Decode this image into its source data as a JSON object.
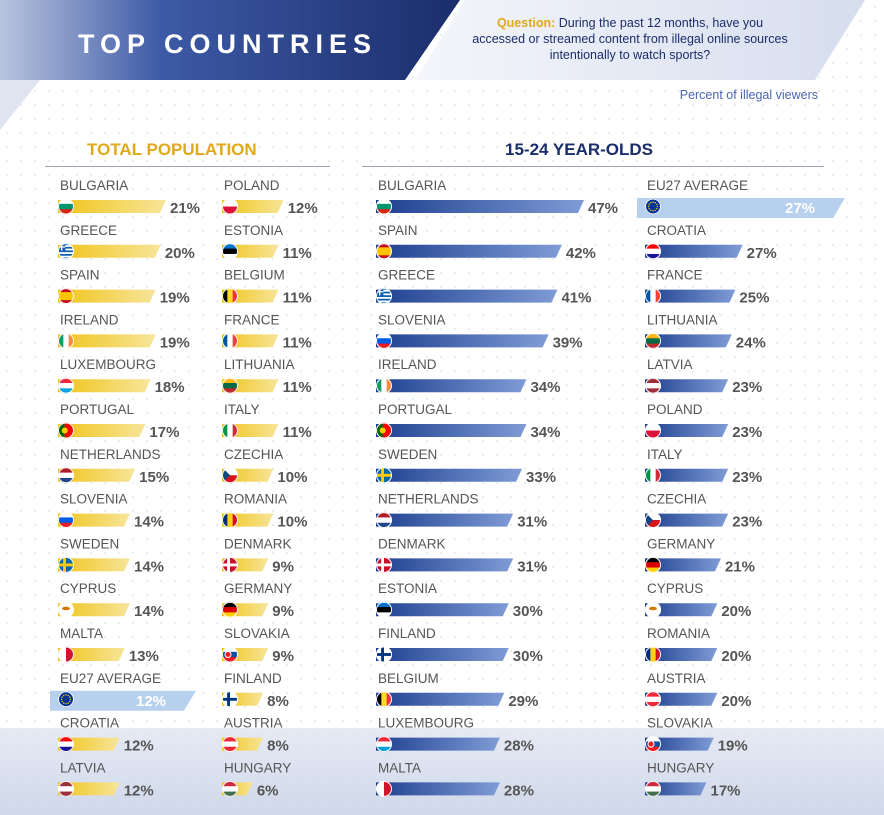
{
  "header": {
    "title": "TOP COUNTRIES",
    "question_label": "Question:",
    "question_text": "During the past 12 months, have you accessed or streamed content from illegal online sources intentionally to watch sports?",
    "legend_note": "Percent of illegal viewers"
  },
  "colors": {
    "navy": "#1b2d6b",
    "gold": "#f0c419",
    "gold_light": "#f7e59a",
    "blue": "#1e3f8f",
    "blue_light": "#7f9cd6",
    "highlight": "#b7d0ee",
    "text": "#555555"
  },
  "chart_data": [
    {
      "type": "bar",
      "title": "TOTAL POPULATION",
      "unit": "%",
      "scale_max": 21,
      "columns": [
        {
          "categories": [
            "BULGARIA",
            "GREECE",
            "SPAIN",
            "IRELAND",
            "LUXEMBOURG",
            "PORTUGAL",
            "NETHERLANDS",
            "SLOVENIA",
            "SWEDEN",
            "CYPRUS",
            "MALTA",
            "EU27 AVERAGE",
            "CROATIA",
            "LATVIA"
          ],
          "values": [
            21,
            20,
            19,
            19,
            18,
            17,
            15,
            14,
            14,
            14,
            13,
            12,
            12,
            12
          ],
          "flags": [
            "BG",
            "GR",
            "ES",
            "IE",
            "LU",
            "PT",
            "NL",
            "SI",
            "SE",
            "CY",
            "MT",
            "EU",
            "HR",
            "LV"
          ]
        },
        {
          "categories": [
            "POLAND",
            "ESTONIA",
            "BELGIUM",
            "FRANCE",
            "LITHUANIA",
            "ITALY",
            "CZECHIA",
            "ROMANIA",
            "DENMARK",
            "GERMANY",
            "SLOVAKIA",
            "FINLAND",
            "AUSTRIA",
            "HUNGARY"
          ],
          "values": [
            12,
            11,
            11,
            11,
            11,
            11,
            10,
            10,
            9,
            9,
            9,
            8,
            8,
            6
          ],
          "flags": [
            "PL",
            "EE",
            "BE",
            "FR",
            "LT",
            "IT",
            "CZ",
            "RO",
            "DK",
            "DE",
            "SK",
            "FI",
            "AT",
            "HU"
          ]
        }
      ]
    },
    {
      "type": "bar",
      "title": "15-24 YEAR-OLDS",
      "unit": "%",
      "scale_max": 47,
      "columns": [
        {
          "categories": [
            "BULGARIA",
            "SPAIN",
            "GREECE",
            "SLOVENIA",
            "IRELAND",
            "PORTUGAL",
            "SWEDEN",
            "NETHERLANDS",
            "DENMARK",
            "ESTONIA",
            "FINLAND",
            "BELGIUM",
            "LUXEMBOURG",
            "MALTA"
          ],
          "values": [
            47,
            42,
            41,
            39,
            34,
            34,
            33,
            31,
            31,
            30,
            30,
            29,
            28,
            28
          ],
          "flags": [
            "BG",
            "ES",
            "GR",
            "SI",
            "IE",
            "PT",
            "SE",
            "NL",
            "DK",
            "EE",
            "FI",
            "BE",
            "LU",
            "MT"
          ]
        },
        {
          "categories": [
            "EU27 AVERAGE",
            "CROATIA",
            "FRANCE",
            "LITHUANIA",
            "LATVIA",
            "POLAND",
            "ITALY",
            "CZECHIA",
            "GERMANY",
            "CYPRUS",
            "ROMANIA",
            "AUSTRIA",
            "SLOVAKIA",
            "HUNGARY"
          ],
          "values": [
            27,
            27,
            25,
            24,
            23,
            23,
            23,
            23,
            21,
            20,
            20,
            20,
            19,
            17
          ],
          "flags": [
            "EU",
            "HR",
            "FR",
            "LT",
            "LV",
            "PL",
            "IT",
            "CZ",
            "DE",
            "CY",
            "RO",
            "AT",
            "SK",
            "HU"
          ]
        }
      ]
    }
  ]
}
